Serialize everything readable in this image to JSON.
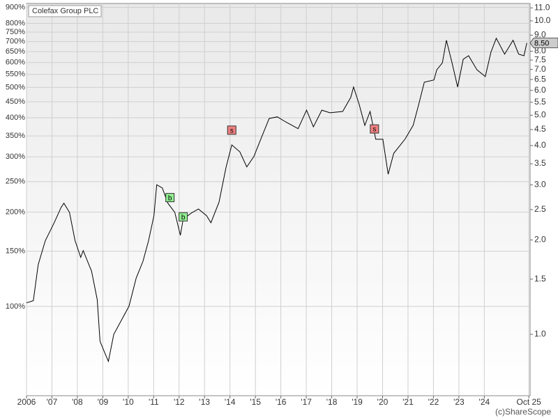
{
  "chart_data": {
    "type": "line",
    "title": "Colefax Group PLC",
    "credit": "(c)ShareScope",
    "log_scale": true,
    "grid": true,
    "series": [
      {
        "name": "Colefax Group PLC",
        "color": "#000000",
        "x": [
          2006.0,
          2006.27,
          2006.46,
          2006.74,
          2007.09,
          2007.36,
          2007.47,
          2007.69,
          2007.91,
          2008.13,
          2008.23,
          2008.56,
          2008.78,
          2008.89,
          2009.11,
          2009.22,
          2009.43,
          2009.76,
          2010.03,
          2010.31,
          2010.58,
          2010.8,
          2011.01,
          2011.12,
          2011.34,
          2011.56,
          2011.83,
          2012.05,
          2012.16,
          2012.49,
          2012.76,
          2013.08,
          2013.25,
          2013.57,
          2013.85,
          2014.07,
          2014.39,
          2014.66,
          2014.94,
          2015.21,
          2015.54,
          2015.86,
          2016.19,
          2016.68,
          2017.01,
          2017.28,
          2017.61,
          2017.93,
          2018.43,
          2018.75,
          2018.86,
          2019.08,
          2019.3,
          2019.51,
          2019.73,
          2020.01,
          2020.22,
          2020.44,
          2020.88,
          2021.2,
          2021.42,
          2021.64,
          2022.02,
          2022.13,
          2022.35,
          2022.51,
          2022.73,
          2022.95,
          2023.17,
          2023.38,
          2023.71,
          2024.04,
          2024.26,
          2024.47,
          2024.8,
          2025.13,
          2025.35,
          2025.56,
          2025.67
        ],
        "values": [
          1.26,
          1.28,
          1.67,
          1.99,
          2.27,
          2.54,
          2.62,
          2.45,
          1.99,
          1.76,
          1.85,
          1.59,
          1.29,
          0.95,
          0.86,
          0.82,
          1.0,
          1.12,
          1.23,
          1.51,
          1.71,
          1.99,
          2.39,
          3.0,
          2.93,
          2.62,
          2.45,
          2.07,
          2.33,
          2.44,
          2.51,
          2.39,
          2.27,
          2.64,
          3.42,
          4.02,
          3.82,
          3.42,
          3.69,
          4.19,
          4.88,
          4.94,
          4.76,
          4.53,
          5.19,
          4.59,
          5.19,
          5.09,
          5.14,
          5.7,
          6.15,
          5.41,
          4.64,
          5.14,
          4.19,
          4.19,
          3.24,
          3.78,
          4.19,
          4.64,
          5.41,
          6.37,
          6.48,
          6.98,
          7.34,
          8.67,
          7.34,
          6.15,
          7.54,
          7.74,
          6.98,
          6.64,
          7.94,
          8.8,
          7.83,
          8.67,
          7.83,
          7.74,
          8.5
        ]
      }
    ],
    "trades": [
      {
        "label": "b",
        "x": 2011.64,
        "y": 2.73,
        "color": "#90ee90"
      },
      {
        "label": "b",
        "x": 2012.16,
        "y": 2.37,
        "color": "#90ee90"
      },
      {
        "label": "s",
        "x": 2014.07,
        "y": 4.48,
        "color": "#f08080"
      },
      {
        "label": "s",
        "x": 2019.68,
        "y": 4.52,
        "color": "#f08080"
      }
    ],
    "last_price": {
      "value": 8.5,
      "label": "8.50"
    },
    "xlim": [
      2006,
      2025.8
    ],
    "xticks": [
      2006,
      {
        "value": 2007,
        "label": "'07"
      },
      {
        "value": 2008,
        "label": "'08"
      },
      {
        "value": 2009,
        "label": "'09"
      },
      {
        "value": 2010,
        "label": "'10"
      },
      {
        "value": 2011,
        "label": "'11"
      },
      {
        "value": 2012,
        "label": "'12"
      },
      {
        "value": 2013,
        "label": "'13"
      },
      {
        "value": 2014,
        "label": "'14"
      },
      {
        "value": 2015,
        "label": "'15"
      },
      {
        "value": 2016,
        "label": "'16"
      },
      {
        "value": 2017,
        "label": "'17"
      },
      {
        "value": 2018,
        "label": "'18"
      },
      {
        "value": 2019,
        "label": "'19"
      },
      {
        "value": 2020,
        "label": "'20"
      },
      {
        "value": 2021,
        "label": "'21"
      },
      {
        "value": 2022,
        "label": "'22"
      },
      {
        "value": 2023,
        "label": "'23"
      },
      {
        "value": 2024,
        "label": "'24"
      },
      {
        "value": 2025.75,
        "label": "Oct 25"
      }
    ],
    "ylim": [
      0.637,
      11.36
    ],
    "yticks": [
      {
        "value": 1,
        "label": "1.0"
      },
      1.5,
      {
        "value": 2,
        "label": "2.0"
      },
      2.5,
      {
        "value": 3,
        "label": "3.0"
      },
      3.5,
      {
        "value": 4,
        "label": "4.0"
      },
      4.5,
      {
        "value": 5,
        "label": "5.0"
      },
      5.5,
      {
        "value": 6,
        "label": "6.0"
      },
      6.5,
      {
        "value": 7,
        "label": "7.0"
      },
      7.5,
      {
        "value": 8,
        "label": "8.0"
      },
      {
        "value": 9,
        "label": "9.0"
      },
      {
        "value": 10,
        "label": "10.0"
      },
      {
        "value": 11,
        "label": "11.0"
      }
    ],
    "y2lim": [
      51.9,
      925.8
    ],
    "y2ticks": [
      {
        "value": 100,
        "label": "100%"
      },
      {
        "value": 150,
        "label": "150%"
      },
      {
        "value": 200,
        "label": "200%"
      },
      {
        "value": 250,
        "label": "250%"
      },
      {
        "value": 300,
        "label": "300%"
      },
      {
        "value": 350,
        "label": "350%"
      },
      {
        "value": 400,
        "label": "400%"
      },
      {
        "value": 450,
        "label": "450%"
      },
      {
        "value": 500,
        "label": "500%"
      },
      {
        "value": 550,
        "label": "550%"
      },
      {
        "value": 600,
        "label": "600%"
      },
      {
        "value": 650,
        "label": "650%"
      },
      {
        "value": 700,
        "label": "700%"
      },
      {
        "value": 750,
        "label": "750%"
      },
      {
        "value": 800,
        "label": "800%"
      },
      {
        "value": 900,
        "label": "900%"
      }
    ]
  }
}
